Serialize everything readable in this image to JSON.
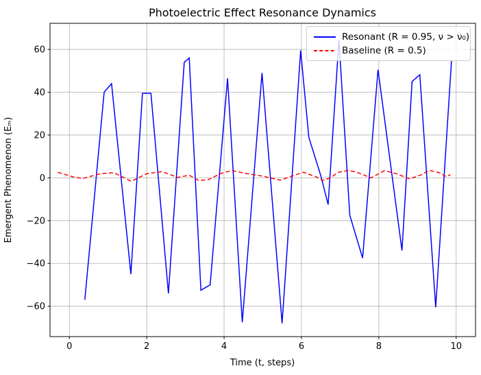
{
  "chart_data": {
    "type": "line",
    "title": "Photoelectric Effect Resonance Dynamics",
    "xlabel": "Time (t, steps)",
    "ylabel": "Emergent Phenomenon (Eₘ)",
    "xlim": [
      -0.5,
      10.5
    ],
    "ylim": [
      -74.2,
      72.2
    ],
    "xticks": [
      0,
      2,
      4,
      6,
      8,
      10
    ],
    "yticks": [
      -60,
      -40,
      -20,
      0,
      20,
      40,
      60
    ],
    "grid": true,
    "grid_color": "#b0b0b0",
    "legend_position": "upper right",
    "series": [
      {
        "name": "Resonant (R = 0.95, ν > ν₀)",
        "color": "#0000ff",
        "style": "solid",
        "points": [
          [
            0.4,
            -57.0
          ],
          [
            0.9,
            40.0
          ],
          [
            1.09,
            44.0
          ],
          [
            1.59,
            -45.0
          ],
          [
            1.89,
            39.5
          ],
          [
            2.11,
            39.5
          ],
          [
            2.56,
            -54.0
          ],
          [
            2.97,
            54.0
          ],
          [
            3.1,
            56.0
          ],
          [
            3.4,
            -52.5
          ],
          [
            3.64,
            -50.0
          ],
          [
            4.09,
            46.5
          ],
          [
            4.47,
            -67.5
          ],
          [
            4.98,
            49.0
          ],
          [
            5.5,
            -68.0
          ],
          [
            5.98,
            59.5
          ],
          [
            6.19,
            19.0
          ],
          [
            6.5,
            1.0
          ],
          [
            6.69,
            -12.5
          ],
          [
            6.97,
            64.5
          ],
          [
            7.25,
            -17.5
          ],
          [
            7.58,
            -37.5
          ],
          [
            7.98,
            50.5
          ],
          [
            8.6,
            -34.0
          ],
          [
            8.86,
            45.0
          ],
          [
            9.06,
            48.2
          ],
          [
            9.47,
            -60.5
          ],
          [
            9.88,
            55.0
          ]
        ]
      },
      {
        "name": "Baseline (R = 0.5)",
        "color": "#ff0000",
        "style": "dashed",
        "points": [
          [
            -0.3,
            2.6
          ],
          [
            0.1,
            0.4
          ],
          [
            0.35,
            -0.3
          ],
          [
            0.8,
            1.9
          ],
          [
            1.15,
            2.4
          ],
          [
            1.6,
            -1.6
          ],
          [
            2.0,
            1.9
          ],
          [
            2.4,
            2.9
          ],
          [
            2.8,
            0.2
          ],
          [
            3.1,
            1.2
          ],
          [
            3.35,
            -1.3
          ],
          [
            3.6,
            -0.8
          ],
          [
            3.9,
            1.9
          ],
          [
            4.2,
            3.4
          ],
          [
            4.6,
            1.9
          ],
          [
            5.0,
            0.8
          ],
          [
            5.45,
            -1.1
          ],
          [
            5.8,
            1.1
          ],
          [
            6.05,
            2.6
          ],
          [
            6.4,
            0.3
          ],
          [
            6.55,
            -1.2
          ],
          [
            6.75,
            0.0
          ],
          [
            6.95,
            2.6
          ],
          [
            7.2,
            3.4
          ],
          [
            7.4,
            2.8
          ],
          [
            7.8,
            0.0
          ],
          [
            8.15,
            3.4
          ],
          [
            8.45,
            1.9
          ],
          [
            8.8,
            -0.5
          ],
          [
            9.1,
            1.4
          ],
          [
            9.3,
            3.5
          ],
          [
            9.55,
            2.5
          ],
          [
            9.75,
            0.5
          ],
          [
            9.85,
            1.5
          ]
        ]
      }
    ]
  }
}
